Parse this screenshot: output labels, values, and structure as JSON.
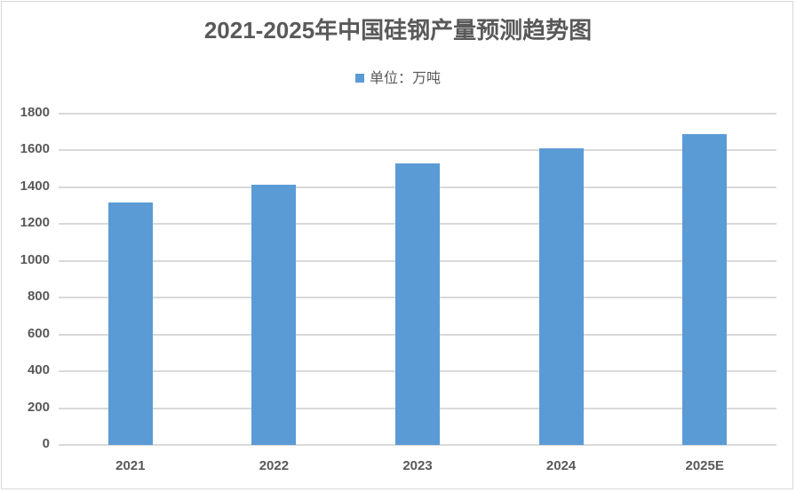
{
  "chart_data": {
    "type": "bar",
    "title": "2021-2025年中国硅钢产量预测趋势图",
    "legend": [
      "单位：万吨"
    ],
    "legend_position": "top",
    "categories": [
      "2021",
      "2022",
      "2023",
      "2024",
      "2025E"
    ],
    "series": [
      {
        "name": "单位：万吨",
        "values": [
          1318,
          1414,
          1530,
          1612,
          1689
        ],
        "color": "#5b9bd5"
      }
    ],
    "xlabel": "",
    "ylabel": "",
    "ylim": [
      0,
      1800
    ],
    "yticks": [
      "0",
      "200",
      "400",
      "600",
      "800",
      "1000",
      "1200",
      "1400",
      "1600",
      "1800"
    ],
    "grid": true
  }
}
